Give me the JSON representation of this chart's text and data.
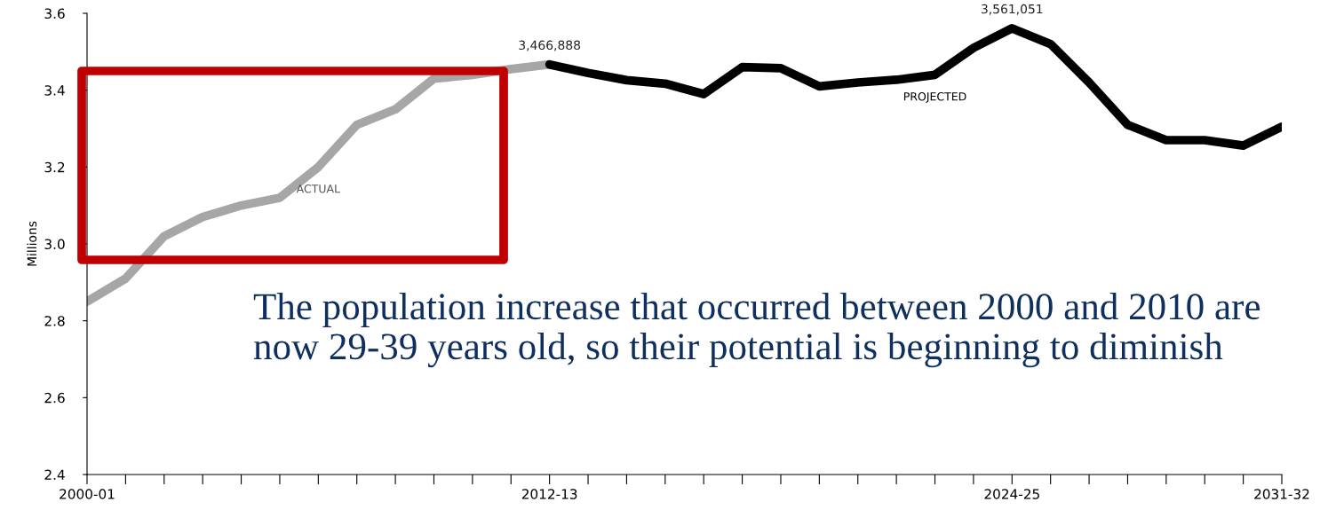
{
  "chart_data": {
    "type": "line",
    "ylabel": "Millions",
    "categories": [
      "2000-01",
      null,
      null,
      null,
      null,
      null,
      null,
      null,
      null,
      null,
      null,
      null,
      "2012-13",
      null,
      null,
      null,
      null,
      null,
      null,
      null,
      null,
      null,
      null,
      null,
      "2024-25",
      null,
      null,
      null,
      null,
      null,
      null,
      "2031-32"
    ],
    "series": [
      {
        "name": "ACTUAL",
        "color": "#a6a6a6",
        "values": [
          2.85,
          2.91,
          3.02,
          3.07,
          3.1,
          3.12,
          3.2,
          3.31,
          3.35,
          3.43,
          3.44,
          3.455,
          3.466888,
          null,
          null,
          null,
          null,
          null,
          null,
          null,
          null,
          null,
          null,
          null,
          null,
          null,
          null,
          null,
          null,
          null,
          null,
          null
        ]
      },
      {
        "name": "PROJECTED",
        "color": "#000000",
        "values": [
          null,
          null,
          null,
          null,
          null,
          null,
          null,
          null,
          null,
          null,
          null,
          null,
          3.466888,
          3.445,
          3.426,
          3.417,
          3.39,
          3.46,
          3.457,
          3.41,
          3.42,
          3.427,
          3.44,
          3.51,
          3.561051,
          3.52,
          3.42,
          3.31,
          3.27,
          3.27,
          3.256,
          3.305
        ]
      }
    ],
    "ylim": [
      2.4,
      3.6
    ],
    "yticks": [
      2.4,
      2.6,
      2.8,
      {
        "value": 3.0,
        "label": "3.0"
      },
      3.2,
      3.4,
      3.6
    ],
    "grid": false,
    "legend": false,
    "annotations": [
      {
        "text": "3,466,888",
        "x": "2012-13",
        "y": 3.466888
      },
      {
        "text": "3,561,051",
        "x": "2024-25",
        "y": 3.561051
      },
      "The population increase that occurred between 2000 and 2010 are now 29-39 years old, so their potential is beginning to diminish"
    ]
  }
}
